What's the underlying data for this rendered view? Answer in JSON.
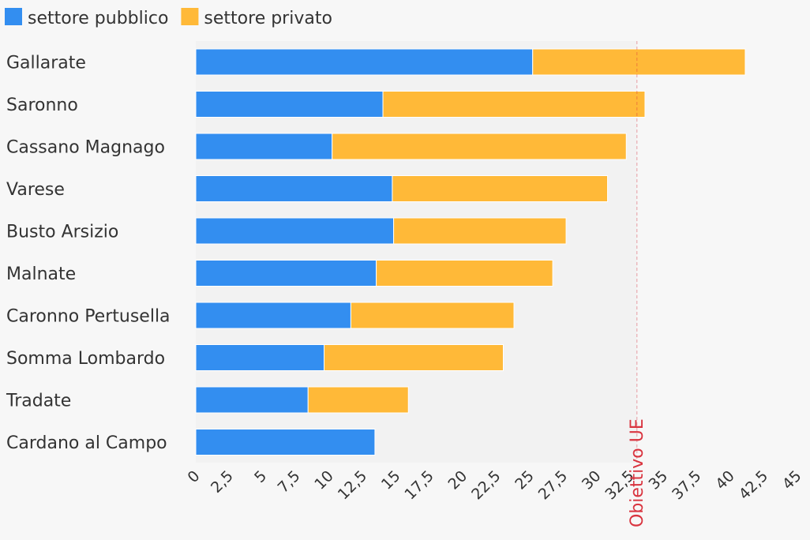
{
  "chart_data": {
    "type": "bar",
    "orientation": "horizontal",
    "stacked": true,
    "categories": [
      "Gallarate",
      "Saronno",
      "Cassano Magnago",
      "Varese",
      "Busto Arsizio",
      "Malnate",
      "Caronno Pertusella",
      "Somma Lombardo",
      "Tradate",
      "Cardano al Campo"
    ],
    "series": [
      {
        "name": "settore pubblico",
        "color": "#338ef0",
        "values": [
          25.2,
          14.0,
          10.2,
          14.7,
          14.8,
          13.5,
          11.6,
          9.6,
          8.4,
          13.4
        ]
      },
      {
        "name": "settore privato",
        "color": "#ffb938",
        "values": [
          15.9,
          19.6,
          22.0,
          16.1,
          12.9,
          13.2,
          12.2,
          13.4,
          7.5,
          0
        ]
      }
    ],
    "xlim": [
      0,
      45
    ],
    "xticks": [
      "0",
      "2,5",
      "5",
      "7,5",
      "10",
      "12,5",
      "15",
      "17,5",
      "20",
      "22,5",
      "25",
      "27,5",
      "30",
      "32,5",
      "35",
      "37,5",
      "40",
      "42,5",
      "45"
    ],
    "reference_line": {
      "value": 33,
      "label": "Obiettivo UE",
      "color": "#d9343f"
    },
    "legend_position": "top-left",
    "plot_background": "#f2f2f2",
    "title": "",
    "xlabel": "",
    "ylabel": ""
  }
}
